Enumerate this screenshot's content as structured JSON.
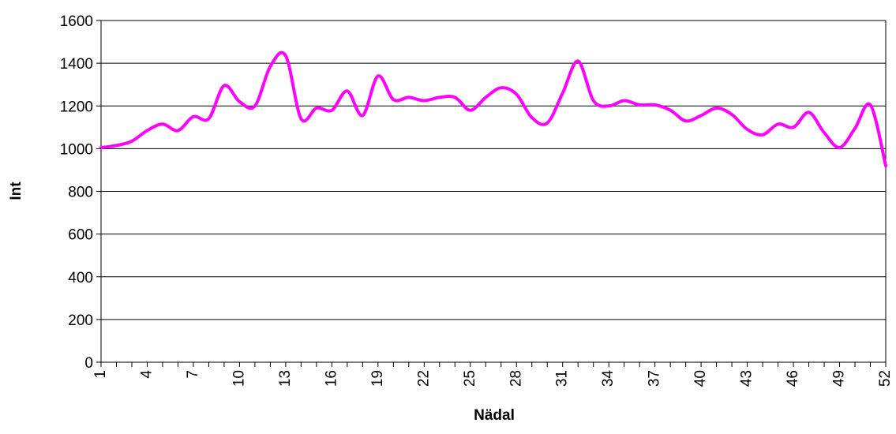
{
  "chart_data": {
    "type": "line",
    "title": "",
    "xlabel": "Nädal",
    "ylabel": "Int",
    "ylim": [
      0,
      1600
    ],
    "yticks": [
      0,
      200,
      400,
      600,
      800,
      1000,
      1200,
      1400,
      1600
    ],
    "xlim": [
      1,
      52
    ],
    "xtick_labels": [
      "1",
      "4",
      "7",
      "10",
      "13",
      "16",
      "19",
      "22",
      "25",
      "28",
      "31",
      "34",
      "37",
      "40",
      "43",
      "46",
      "49",
      "52"
    ],
    "grid": "horizontal",
    "legend": "none",
    "line_color": "#ff00ff",
    "series": [
      {
        "x": [
          1,
          2,
          3,
          4,
          5,
          6,
          7,
          8,
          9,
          10,
          11,
          12,
          13,
          14,
          15,
          16,
          17,
          18,
          19,
          20,
          21,
          22,
          23,
          24,
          25,
          26,
          27,
          28,
          29,
          30,
          31,
          32,
          33,
          34,
          35,
          36,
          37,
          38,
          39,
          40,
          41,
          42,
          43,
          44,
          45,
          46,
          47,
          48,
          49,
          50,
          51,
          52
        ],
        "values": [
          1005,
          1015,
          1035,
          1085,
          1115,
          1085,
          1150,
          1140,
          1295,
          1220,
          1200,
          1385,
          1435,
          1140,
          1190,
          1180,
          1270,
          1155,
          1340,
          1230,
          1240,
          1225,
          1240,
          1240,
          1180,
          1240,
          1285,
          1255,
          1145,
          1120,
          1260,
          1410,
          1225,
          1200,
          1225,
          1205,
          1205,
          1180,
          1130,
          1155,
          1190,
          1160,
          1090,
          1065,
          1115,
          1100,
          1170,
          1075,
          1005,
          1095,
          1205,
          920
        ]
      }
    ]
  }
}
